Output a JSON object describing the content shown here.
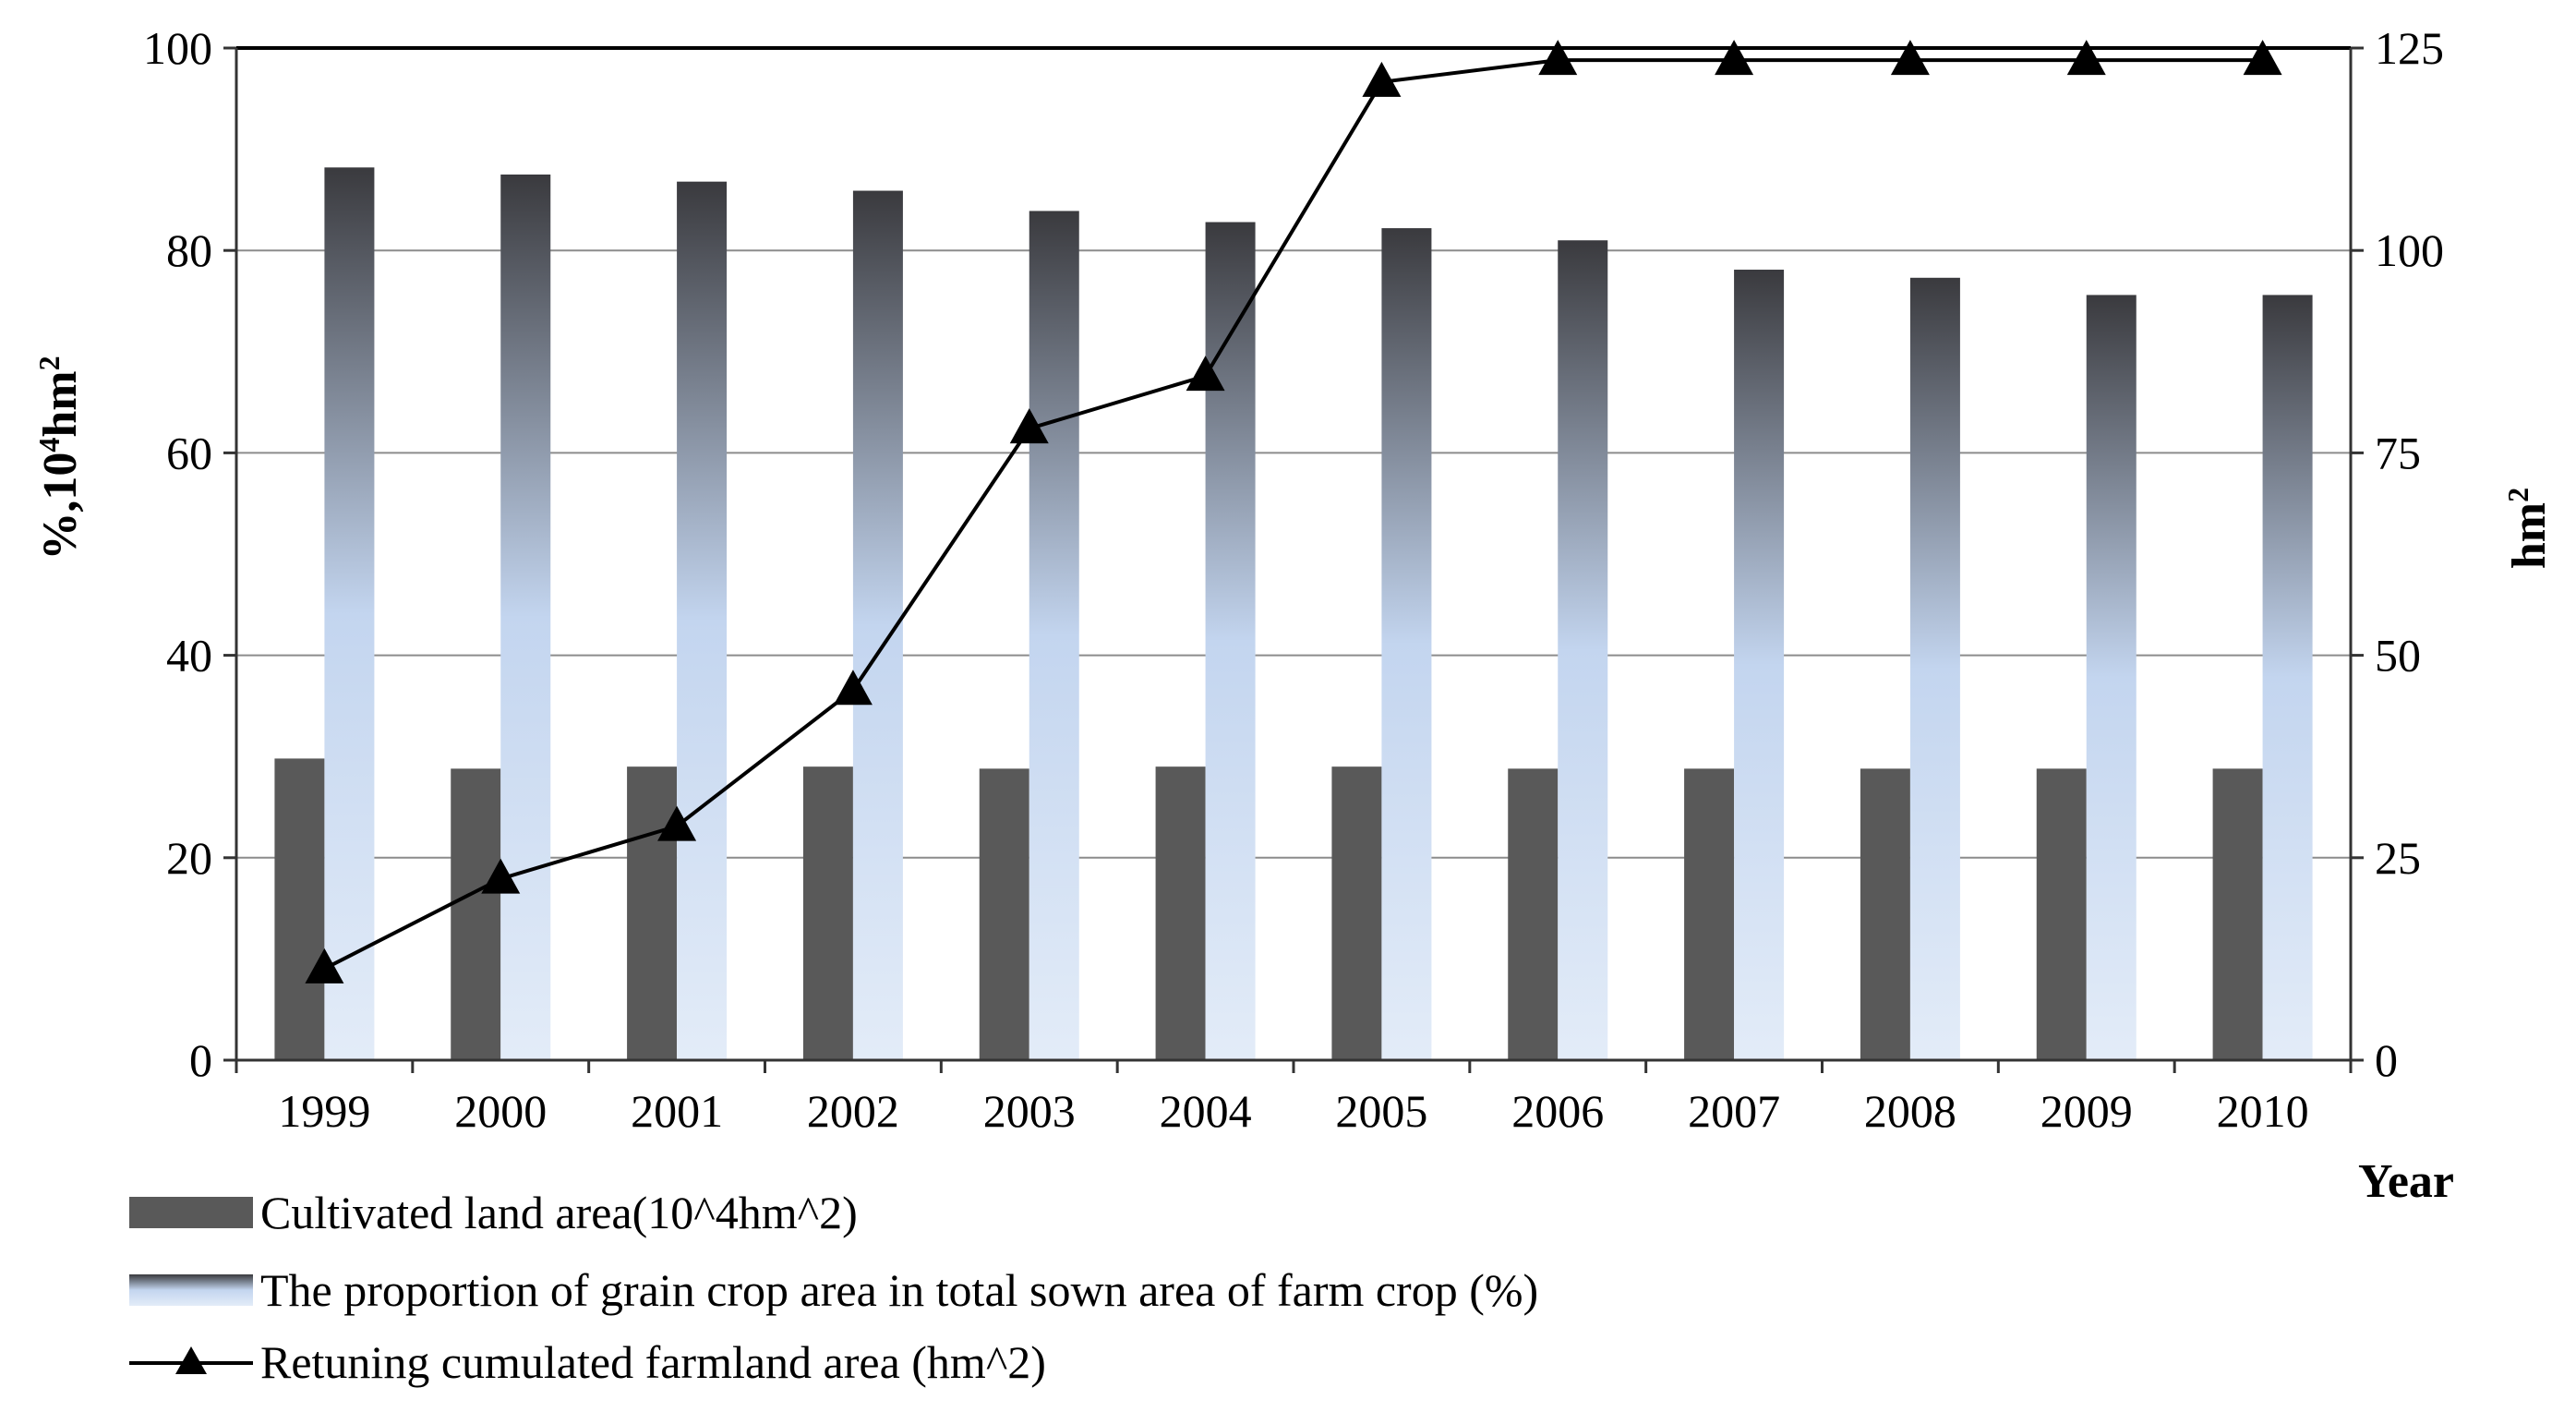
{
  "chart_data": {
    "type": "bar",
    "title": "",
    "categories": [
      "1999",
      "2000",
      "2001",
      "2002",
      "2003",
      "2004",
      "2005",
      "2006",
      "2007",
      "2008",
      "2009",
      "2010"
    ],
    "xlabel": "Year",
    "ylabel_left": {
      "text": "%,10",
      "sup1": "4",
      "mid": "hm",
      "sup2": "2"
    },
    "ylabel_right": {
      "text": "hm",
      "sup": "2"
    },
    "ylim_left": [
      0,
      100
    ],
    "yticks_left": [
      0,
      20,
      40,
      60,
      80,
      100
    ],
    "ylim_right": [
      0,
      125
    ],
    "yticks_right": [
      0,
      25,
      50,
      75,
      100,
      125
    ],
    "grid": true,
    "legend_position": "bottom-left",
    "series": [
      {
        "name": "Cultivated land area(10^4hm^2)",
        "kind": "bar",
        "axis": "left",
        "color": "#595959",
        "values": [
          29.8,
          28.8,
          29.0,
          29.0,
          28.8,
          29.0,
          29.0,
          28.8,
          28.8,
          28.8,
          28.8,
          28.8
        ]
      },
      {
        "name": "The proportion of grain crop area in total sown area of farm crop (%)",
        "kind": "bar",
        "axis": "left",
        "color_top": "#3a3a3e",
        "color_mid": "#c3d5ef",
        "color_bottom": "#e3ecf8",
        "values": [
          88.2,
          87.5,
          86.8,
          85.9,
          83.9,
          82.8,
          82.2,
          81.0,
          78.1,
          77.3,
          75.6,
          75.6
        ]
      },
      {
        "name": "Retuning cumulated farmland area (hm^2)",
        "kind": "line",
        "axis": "right",
        "marker": "triangle",
        "color": "#000000",
        "values": [
          11.3,
          22.4,
          28.9,
          45.7,
          78.0,
          84.5,
          120.8,
          123.5,
          123.5,
          123.5,
          123.5,
          123.5
        ]
      }
    ]
  }
}
